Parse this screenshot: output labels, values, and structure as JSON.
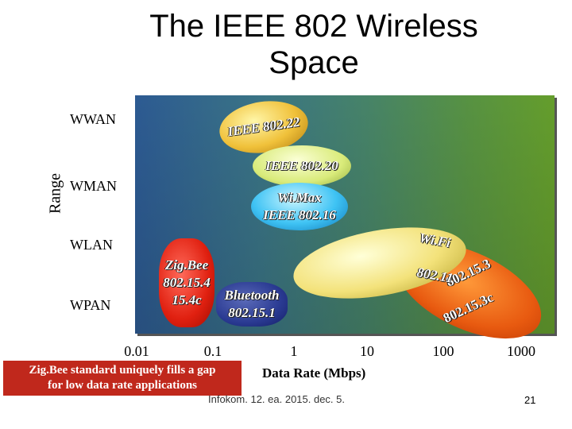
{
  "title": "The IEEE 802 Wireless Space",
  "y_axis_label": "Range",
  "rows": [
    "WWAN",
    "WMAN",
    "WLAN",
    "WPAN"
  ],
  "x_axis": {
    "label": "Data Rate (Mbps)",
    "ticks": [
      "0.01",
      "0.1",
      "1",
      "10",
      "100",
      "1000"
    ]
  },
  "standards": {
    "ieee80222": "IEEE 802.22",
    "ieee80220": "IEEE 802.20",
    "wimax_line1": "Wi.Max",
    "wimax_line2": "IEEE 802.16",
    "wifi_line1": "Wi.Fi",
    "wifi_line2": "802.11",
    "s8021531_line1": "802.15.3",
    "s8021531_line2": "802.15.3c",
    "zigbee_line1": "Zig.Bee",
    "zigbee_line2": "802.15.4",
    "zigbee_line3": "15.4c",
    "bt_line1": "Bluetooth",
    "bt_line2": "802.15.1"
  },
  "callout": {
    "line1": "Zig.Bee standard uniquely fills a gap",
    "line2": "for low data rate applications"
  },
  "footer": "Infokom. 12. ea. 2015. dec.  5.",
  "page_number": "21"
}
